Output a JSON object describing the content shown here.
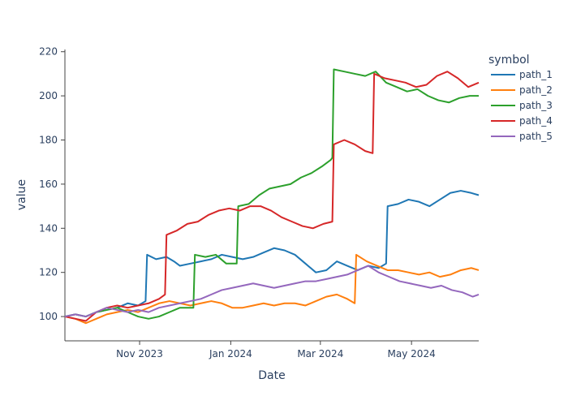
{
  "chart_data": {
    "type": "line",
    "title": "",
    "xlabel": "Date",
    "ylabel": "value",
    "xlim": [
      "2023-09-12",
      "2024-06-15"
    ],
    "ylim": [
      89,
      221
    ],
    "grid": false,
    "legend_title": "symbol",
    "legend_position": "top-right",
    "x_ticks": [
      {
        "date": "2023-11-01",
        "label": "Nov 2023"
      },
      {
        "date": "2024-01-01",
        "label": "Jan 2024"
      },
      {
        "date": "2024-03-01",
        "label": "Mar 2024"
      },
      {
        "date": "2024-05-01",
        "label": "May 2024"
      }
    ],
    "y_ticks": [
      100,
      120,
      140,
      160,
      180,
      200,
      220
    ],
    "series": [
      {
        "name": "path_1",
        "color": "#1f77b4",
        "points": [
          [
            "2023-09-12",
            100
          ],
          [
            "2023-09-19",
            101
          ],
          [
            "2023-09-26",
            100
          ],
          [
            "2023-10-03",
            102
          ],
          [
            "2023-10-10",
            103
          ],
          [
            "2023-10-17",
            104
          ],
          [
            "2023-10-24",
            106
          ],
          [
            "2023-10-31",
            105
          ],
          [
            "2023-11-05",
            107
          ],
          [
            "2023-11-06",
            128
          ],
          [
            "2023-11-12",
            126
          ],
          [
            "2023-11-19",
            127
          ],
          [
            "2023-11-24",
            125
          ],
          [
            "2023-11-28",
            123
          ],
          [
            "2023-12-05",
            124
          ],
          [
            "2023-12-12",
            125
          ],
          [
            "2023-12-19",
            126
          ],
          [
            "2023-12-26",
            128
          ],
          [
            "2024-01-02",
            127
          ],
          [
            "2024-01-09",
            126
          ],
          [
            "2024-01-16",
            127
          ],
          [
            "2024-01-23",
            129
          ],
          [
            "2024-01-30",
            131
          ],
          [
            "2024-02-06",
            130
          ],
          [
            "2024-02-13",
            128
          ],
          [
            "2024-02-20",
            124
          ],
          [
            "2024-02-27",
            120
          ],
          [
            "2024-03-05",
            121
          ],
          [
            "2024-03-12",
            125
          ],
          [
            "2024-03-19",
            123
          ],
          [
            "2024-03-26",
            121
          ],
          [
            "2024-04-02",
            123
          ],
          [
            "2024-04-09",
            122
          ],
          [
            "2024-04-14",
            124
          ],
          [
            "2024-04-15",
            150
          ],
          [
            "2024-04-22",
            151
          ],
          [
            "2024-04-29",
            153
          ],
          [
            "2024-05-06",
            152
          ],
          [
            "2024-05-13",
            150
          ],
          [
            "2024-05-20",
            153
          ],
          [
            "2024-05-27",
            156
          ],
          [
            "2024-06-03",
            157
          ],
          [
            "2024-06-10",
            156
          ],
          [
            "2024-06-15",
            155
          ]
        ]
      },
      {
        "name": "path_2",
        "color": "#ff7f0e",
        "points": [
          [
            "2023-09-12",
            100
          ],
          [
            "2023-09-19",
            99
          ],
          [
            "2023-09-26",
            97
          ],
          [
            "2023-10-03",
            99
          ],
          [
            "2023-10-10",
            101
          ],
          [
            "2023-10-17",
            102
          ],
          [
            "2023-10-24",
            103
          ],
          [
            "2023-10-31",
            102
          ],
          [
            "2023-11-07",
            104
          ],
          [
            "2023-11-14",
            106
          ],
          [
            "2023-11-21",
            107
          ],
          [
            "2023-11-28",
            106
          ],
          [
            "2023-12-05",
            105
          ],
          [
            "2023-12-12",
            106
          ],
          [
            "2023-12-19",
            107
          ],
          [
            "2023-12-26",
            106
          ],
          [
            "2024-01-02",
            104
          ],
          [
            "2024-01-09",
            104
          ],
          [
            "2024-01-16",
            105
          ],
          [
            "2024-01-23",
            106
          ],
          [
            "2024-01-30",
            105
          ],
          [
            "2024-02-06",
            106
          ],
          [
            "2024-02-13",
            106
          ],
          [
            "2024-02-20",
            105
          ],
          [
            "2024-02-27",
            107
          ],
          [
            "2024-03-05",
            109
          ],
          [
            "2024-03-12",
            110
          ],
          [
            "2024-03-19",
            108
          ],
          [
            "2024-03-24",
            106
          ],
          [
            "2024-03-25",
            128
          ],
          [
            "2024-04-01",
            125
          ],
          [
            "2024-04-08",
            123
          ],
          [
            "2024-04-15",
            121
          ],
          [
            "2024-04-22",
            121
          ],
          [
            "2024-04-29",
            120
          ],
          [
            "2024-05-06",
            119
          ],
          [
            "2024-05-13",
            120
          ],
          [
            "2024-05-20",
            118
          ],
          [
            "2024-05-27",
            119
          ],
          [
            "2024-06-03",
            121
          ],
          [
            "2024-06-10",
            122
          ],
          [
            "2024-06-15",
            121
          ]
        ]
      },
      {
        "name": "path_3",
        "color": "#2ca02c",
        "points": [
          [
            "2023-09-12",
            100
          ],
          [
            "2023-09-19",
            101
          ],
          [
            "2023-09-26",
            100
          ],
          [
            "2023-10-03",
            102
          ],
          [
            "2023-10-10",
            103
          ],
          [
            "2023-10-17",
            104
          ],
          [
            "2023-10-24",
            102
          ],
          [
            "2023-10-31",
            100
          ],
          [
            "2023-11-07",
            99
          ],
          [
            "2023-11-14",
            100
          ],
          [
            "2023-11-21",
            102
          ],
          [
            "2023-11-28",
            104
          ],
          [
            "2023-12-05",
            104
          ],
          [
            "2023-12-07",
            104
          ],
          [
            "2023-12-08",
            128
          ],
          [
            "2023-12-15",
            127
          ],
          [
            "2023-12-22",
            128
          ],
          [
            "2023-12-29",
            124
          ],
          [
            "2024-01-05",
            124
          ],
          [
            "2024-01-06",
            150
          ],
          [
            "2024-01-13",
            151
          ],
          [
            "2024-01-20",
            155
          ],
          [
            "2024-01-27",
            158
          ],
          [
            "2024-02-03",
            159
          ],
          [
            "2024-02-10",
            160
          ],
          [
            "2024-02-17",
            163
          ],
          [
            "2024-02-24",
            165
          ],
          [
            "2024-03-02",
            168
          ],
          [
            "2024-03-08",
            171
          ],
          [
            "2024-03-09",
            172
          ],
          [
            "2024-03-10",
            212
          ],
          [
            "2024-03-17",
            211
          ],
          [
            "2024-03-24",
            210
          ],
          [
            "2024-03-31",
            209
          ],
          [
            "2024-04-07",
            211
          ],
          [
            "2024-04-14",
            206
          ],
          [
            "2024-04-21",
            204
          ],
          [
            "2024-04-28",
            202
          ],
          [
            "2024-05-05",
            203
          ],
          [
            "2024-05-12",
            200
          ],
          [
            "2024-05-19",
            198
          ],
          [
            "2024-05-26",
            197
          ],
          [
            "2024-06-02",
            199
          ],
          [
            "2024-06-09",
            200
          ],
          [
            "2024-06-15",
            200
          ]
        ]
      },
      {
        "name": "path_4",
        "color": "#d62728",
        "points": [
          [
            "2023-09-12",
            100
          ],
          [
            "2023-09-19",
            99
          ],
          [
            "2023-09-26",
            98
          ],
          [
            "2023-10-03",
            102
          ],
          [
            "2023-10-10",
            104
          ],
          [
            "2023-10-17",
            105
          ],
          [
            "2023-10-24",
            104
          ],
          [
            "2023-10-31",
            105
          ],
          [
            "2023-11-07",
            106
          ],
          [
            "2023-11-14",
            108
          ],
          [
            "2023-11-18",
            110
          ],
          [
            "2023-11-19",
            137
          ],
          [
            "2023-11-26",
            139
          ],
          [
            "2023-12-03",
            142
          ],
          [
            "2023-12-10",
            143
          ],
          [
            "2023-12-17",
            146
          ],
          [
            "2023-12-24",
            148
          ],
          [
            "2023-12-31",
            149
          ],
          [
            "2024-01-07",
            148
          ],
          [
            "2024-01-14",
            150
          ],
          [
            "2024-01-21",
            150
          ],
          [
            "2024-01-28",
            148
          ],
          [
            "2024-02-04",
            145
          ],
          [
            "2024-02-11",
            143
          ],
          [
            "2024-02-18",
            141
          ],
          [
            "2024-02-25",
            140
          ],
          [
            "2024-03-03",
            142
          ],
          [
            "2024-03-09",
            143
          ],
          [
            "2024-03-10",
            178
          ],
          [
            "2024-03-17",
            180
          ],
          [
            "2024-03-24",
            178
          ],
          [
            "2024-03-31",
            175
          ],
          [
            "2024-04-05",
            174
          ],
          [
            "2024-04-06",
            210
          ],
          [
            "2024-04-13",
            208
          ],
          [
            "2024-04-20",
            207
          ],
          [
            "2024-04-27",
            206
          ],
          [
            "2024-05-04",
            204
          ],
          [
            "2024-05-11",
            205
          ],
          [
            "2024-05-18",
            209
          ],
          [
            "2024-05-25",
            211
          ],
          [
            "2024-06-01",
            208
          ],
          [
            "2024-06-08",
            204
          ],
          [
            "2024-06-15",
            206
          ]
        ]
      },
      {
        "name": "path_5",
        "color": "#9467bd",
        "points": [
          [
            "2023-09-12",
            100
          ],
          [
            "2023-09-19",
            101
          ],
          [
            "2023-09-26",
            100
          ],
          [
            "2023-10-03",
            102
          ],
          [
            "2023-10-10",
            104
          ],
          [
            "2023-10-17",
            103
          ],
          [
            "2023-10-24",
            102
          ],
          [
            "2023-10-31",
            103
          ],
          [
            "2023-11-07",
            102
          ],
          [
            "2023-11-14",
            104
          ],
          [
            "2023-11-21",
            105
          ],
          [
            "2023-11-28",
            106
          ],
          [
            "2023-12-05",
            107
          ],
          [
            "2023-12-12",
            108
          ],
          [
            "2023-12-19",
            110
          ],
          [
            "2023-12-26",
            112
          ],
          [
            "2024-01-02",
            113
          ],
          [
            "2024-01-09",
            114
          ],
          [
            "2024-01-16",
            115
          ],
          [
            "2024-01-23",
            114
          ],
          [
            "2024-01-30",
            113
          ],
          [
            "2024-02-06",
            114
          ],
          [
            "2024-02-13",
            115
          ],
          [
            "2024-02-20",
            116
          ],
          [
            "2024-02-27",
            116
          ],
          [
            "2024-03-05",
            117
          ],
          [
            "2024-03-12",
            118
          ],
          [
            "2024-03-19",
            119
          ],
          [
            "2024-03-26",
            121
          ],
          [
            "2024-04-02",
            123
          ],
          [
            "2024-04-09",
            120
          ],
          [
            "2024-04-16",
            118
          ],
          [
            "2024-04-23",
            116
          ],
          [
            "2024-04-30",
            115
          ],
          [
            "2024-05-07",
            114
          ],
          [
            "2024-05-14",
            113
          ],
          [
            "2024-05-21",
            114
          ],
          [
            "2024-05-28",
            112
          ],
          [
            "2024-06-04",
            111
          ],
          [
            "2024-06-11",
            109
          ],
          [
            "2024-06-15",
            110
          ]
        ]
      }
    ]
  }
}
